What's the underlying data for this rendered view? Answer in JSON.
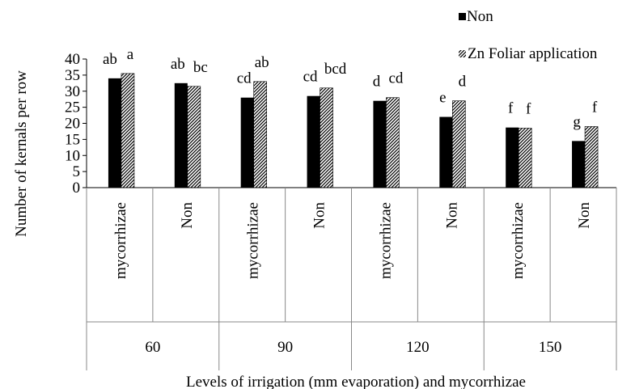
{
  "chart_data": {
    "type": "bar",
    "title": "",
    "ylabel": "Number of kernals per row",
    "xlabel": "Levels of irrigation (mm evaporation) and mycorrhizae",
    "ylim": [
      0,
      40
    ],
    "yticks": [
      "0",
      "5",
      "10",
      "15",
      "20",
      "25",
      "30",
      "35",
      "40"
    ],
    "legend_position": "top-right",
    "grid": false,
    "categories": [
      "mycorrhizae",
      "Non",
      "mycorrhizae",
      "Non",
      "mycorrhizae",
      "Non",
      "mycorrhizae",
      "Non"
    ],
    "groups": [
      {
        "label": "60"
      },
      {
        "label": "90"
      },
      {
        "label": "120"
      },
      {
        "label": "150"
      }
    ],
    "series": [
      {
        "name": "Non",
        "fill": "solid",
        "color": "#000000",
        "values": [
          34,
          32.5,
          28,
          28.5,
          27,
          22,
          18.7,
          14.5
        ],
        "labels": [
          "ab",
          "ab",
          "cd",
          "cd",
          "d",
          "e",
          "f",
          "g"
        ]
      },
      {
        "name": "Zn Foliar application",
        "fill": "hatched",
        "color": "#000000",
        "values": [
          35.5,
          31.5,
          33,
          31,
          28,
          27,
          18.5,
          19
        ],
        "labels": [
          "a",
          "bc",
          "ab",
          "bcd",
          "cd",
          "d",
          "f",
          "f"
        ]
      }
    ]
  }
}
